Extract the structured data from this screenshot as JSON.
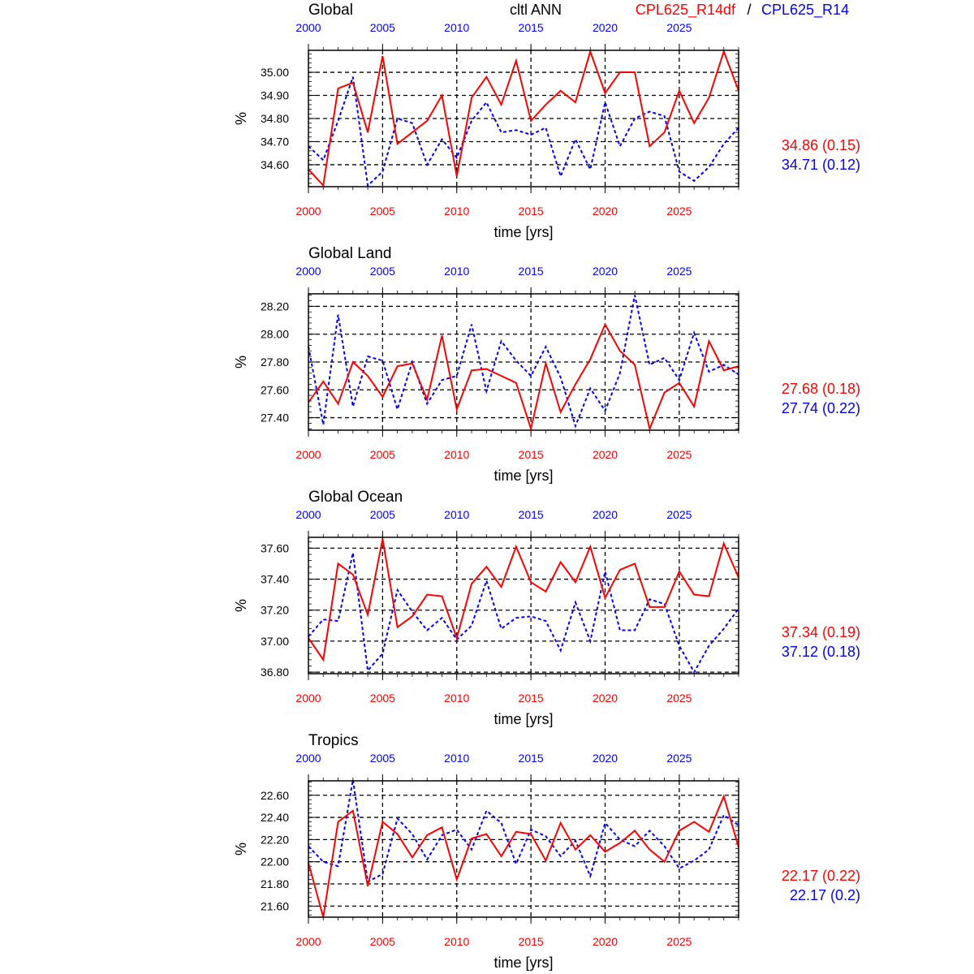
{
  "header": {
    "center_title": "cltl ANN",
    "case1_label": "CPL625_R14df",
    "separator": "/",
    "case2_label": "CPL625_R14"
  },
  "colors": {
    "case1": "#ff0000",
    "case2": "#0000ff",
    "axis": "#000000"
  },
  "chart_data": [
    {
      "type": "line",
      "title": "Global",
      "xlabel": "time [yrs]",
      "ylabel": "%",
      "xlim": [
        2000,
        2029
      ],
      "ylim": [
        34.505,
        35.095
      ],
      "xticks": [
        "2000",
        "2005",
        "2010",
        "2015",
        "2020",
        "2025"
      ],
      "yticks": [
        "34.60",
        "34.70",
        "34.80",
        "34.90",
        "35.00"
      ],
      "grid": true,
      "x": [
        2000,
        2001,
        2002,
        2003,
        2004,
        2005,
        2006,
        2007,
        2008,
        2009,
        2010,
        2011,
        2012,
        2013,
        2014,
        2015,
        2016,
        2017,
        2018,
        2019,
        2020,
        2021,
        2022,
        2023,
        2024,
        2025,
        2026,
        2027,
        2028,
        2029
      ],
      "series": [
        {
          "name": "CPL625_R14df",
          "style": "solid",
          "stat": "34.86 (0.15)",
          "values": [
            34.58,
            34.51,
            34.93,
            34.955,
            34.74,
            35.07,
            34.69,
            34.74,
            34.79,
            34.9,
            34.55,
            34.89,
            34.98,
            34.86,
            35.05,
            34.79,
            34.86,
            34.92,
            34.87,
            35.09,
            34.91,
            35.0,
            35.0,
            34.68,
            34.74,
            34.92,
            34.78,
            34.89,
            35.09,
            34.92
          ]
        },
        {
          "name": "CPL625_R14",
          "style": "dotted",
          "stat": "34.71 (0.12)",
          "values": [
            34.68,
            34.62,
            34.79,
            34.98,
            34.51,
            34.57,
            34.8,
            34.78,
            34.6,
            34.71,
            34.63,
            34.79,
            34.87,
            34.74,
            34.75,
            34.73,
            34.76,
            34.55,
            34.71,
            34.58,
            34.87,
            34.68,
            34.8,
            34.83,
            34.81,
            34.57,
            34.53,
            34.59,
            34.69,
            34.76
          ]
        }
      ]
    },
    {
      "type": "line",
      "title": "Global Land",
      "xlabel": "time [yrs]",
      "ylabel": "%",
      "xlim": [
        2000,
        2029
      ],
      "ylim": [
        27.31,
        28.29
      ],
      "xticks": [
        "2000",
        "2005",
        "2010",
        "2015",
        "2020",
        "2025"
      ],
      "yticks": [
        "27.40",
        "27.60",
        "27.80",
        "28.00",
        "28.20"
      ],
      "grid": true,
      "x": [
        2000,
        2001,
        2002,
        2003,
        2004,
        2005,
        2006,
        2007,
        2008,
        2009,
        2010,
        2011,
        2012,
        2013,
        2014,
        2015,
        2016,
        2017,
        2018,
        2019,
        2020,
        2021,
        2022,
        2023,
        2024,
        2025,
        2026,
        2027,
        2028,
        2029
      ],
      "series": [
        {
          "name": "CPL625_R14df",
          "style": "solid",
          "stat": "27.68 (0.18)",
          "values": [
            27.51,
            27.66,
            27.5,
            27.8,
            27.7,
            27.55,
            27.77,
            27.79,
            27.53,
            27.99,
            27.46,
            27.74,
            27.75,
            27.7,
            27.65,
            27.32,
            27.79,
            27.44,
            27.64,
            27.82,
            28.07,
            27.88,
            27.78,
            27.32,
            27.58,
            27.65,
            27.48,
            27.95,
            27.74,
            27.77
          ]
        },
        {
          "name": "CPL625_R14",
          "style": "dotted",
          "stat": "27.74 (0.22)",
          "values": [
            27.91,
            27.35,
            28.14,
            27.48,
            27.84,
            27.81,
            27.46,
            27.8,
            27.5,
            27.67,
            27.7,
            28.07,
            27.59,
            27.95,
            27.81,
            27.7,
            27.91,
            27.69,
            27.34,
            27.61,
            27.45,
            27.72,
            28.28,
            27.78,
            27.83,
            27.67,
            28.01,
            27.73,
            27.78,
            27.71
          ]
        }
      ]
    },
    {
      "type": "line",
      "title": "Global Ocean",
      "xlabel": "time [yrs]",
      "ylabel": "%",
      "xlim": [
        2000,
        2029
      ],
      "ylim": [
        36.79,
        37.67
      ],
      "xticks": [
        "2000",
        "2005",
        "2010",
        "2015",
        "2020",
        "2025"
      ],
      "yticks": [
        "36.80",
        "37.00",
        "37.20",
        "37.40",
        "37.60"
      ],
      "grid": true,
      "x": [
        2000,
        2001,
        2002,
        2003,
        2004,
        2005,
        2006,
        2007,
        2008,
        2009,
        2010,
        2011,
        2012,
        2013,
        2014,
        2015,
        2016,
        2017,
        2018,
        2019,
        2020,
        2021,
        2022,
        2023,
        2024,
        2025,
        2026,
        2027,
        2028,
        2029
      ],
      "series": [
        {
          "name": "CPL625_R14df",
          "style": "solid",
          "stat": "37.34 (0.19)",
          "values": [
            37.02,
            36.88,
            37.5,
            37.43,
            37.17,
            37.66,
            37.09,
            37.16,
            37.3,
            37.29,
            37.02,
            37.37,
            37.48,
            37.35,
            37.61,
            37.38,
            37.32,
            37.51,
            37.38,
            37.61,
            37.28,
            37.46,
            37.5,
            37.22,
            37.22,
            37.45,
            37.3,
            37.29,
            37.63,
            37.41
          ]
        },
        {
          "name": "CPL625_R14",
          "style": "dotted",
          "stat": "37.12 (0.18)",
          "values": [
            37.03,
            37.14,
            37.13,
            37.57,
            36.81,
            36.92,
            37.33,
            37.19,
            37.07,
            37.15,
            37.01,
            37.1,
            37.39,
            37.08,
            37.15,
            37.16,
            37.13,
            36.94,
            37.25,
            37.0,
            37.45,
            37.07,
            37.07,
            37.27,
            37.24,
            36.97,
            36.8,
            36.97,
            37.08,
            37.21
          ]
        }
      ]
    },
    {
      "type": "line",
      "title": "Tropics",
      "xlabel": "time [yrs]",
      "ylabel": "%",
      "xlim": [
        2000,
        2029
      ],
      "ylim": [
        21.5,
        22.73
      ],
      "xticks": [
        "2000",
        "2005",
        "2010",
        "2015",
        "2020",
        "2025"
      ],
      "yticks": [
        "21.60",
        "21.80",
        "22.00",
        "22.20",
        "22.40",
        "22.60"
      ],
      "grid": true,
      "x": [
        2000,
        2001,
        2002,
        2003,
        2004,
        2005,
        2006,
        2007,
        2008,
        2009,
        2010,
        2011,
        2012,
        2013,
        2014,
        2015,
        2016,
        2017,
        2018,
        2019,
        2020,
        2021,
        2022,
        2023,
        2024,
        2025,
        2026,
        2027,
        2028,
        2029
      ],
      "series": [
        {
          "name": "CPL625_R14df",
          "style": "solid",
          "stat": "22.17 (0.22)",
          "values": [
            21.99,
            21.5,
            22.36,
            22.46,
            21.78,
            22.36,
            22.25,
            22.04,
            22.24,
            22.31,
            21.84,
            22.21,
            22.25,
            22.05,
            22.27,
            22.25,
            22.01,
            22.35,
            22.11,
            22.24,
            22.09,
            22.17,
            22.28,
            22.11,
            22.0,
            22.28,
            22.36,
            22.27,
            22.59,
            22.13
          ]
        },
        {
          "name": "CPL625_R14",
          "style": "dotted",
          "stat": "22.17 (0.2)",
          "values": [
            22.14,
            22.0,
            21.96,
            22.74,
            21.82,
            21.89,
            22.39,
            22.25,
            22.02,
            22.24,
            22.29,
            22.11,
            22.46,
            22.35,
            21.98,
            22.29,
            22.23,
            22.05,
            22.19,
            21.87,
            22.35,
            22.2,
            22.14,
            22.28,
            22.14,
            21.94,
            22.01,
            22.11,
            22.42,
            22.33
          ]
        }
      ]
    }
  ]
}
